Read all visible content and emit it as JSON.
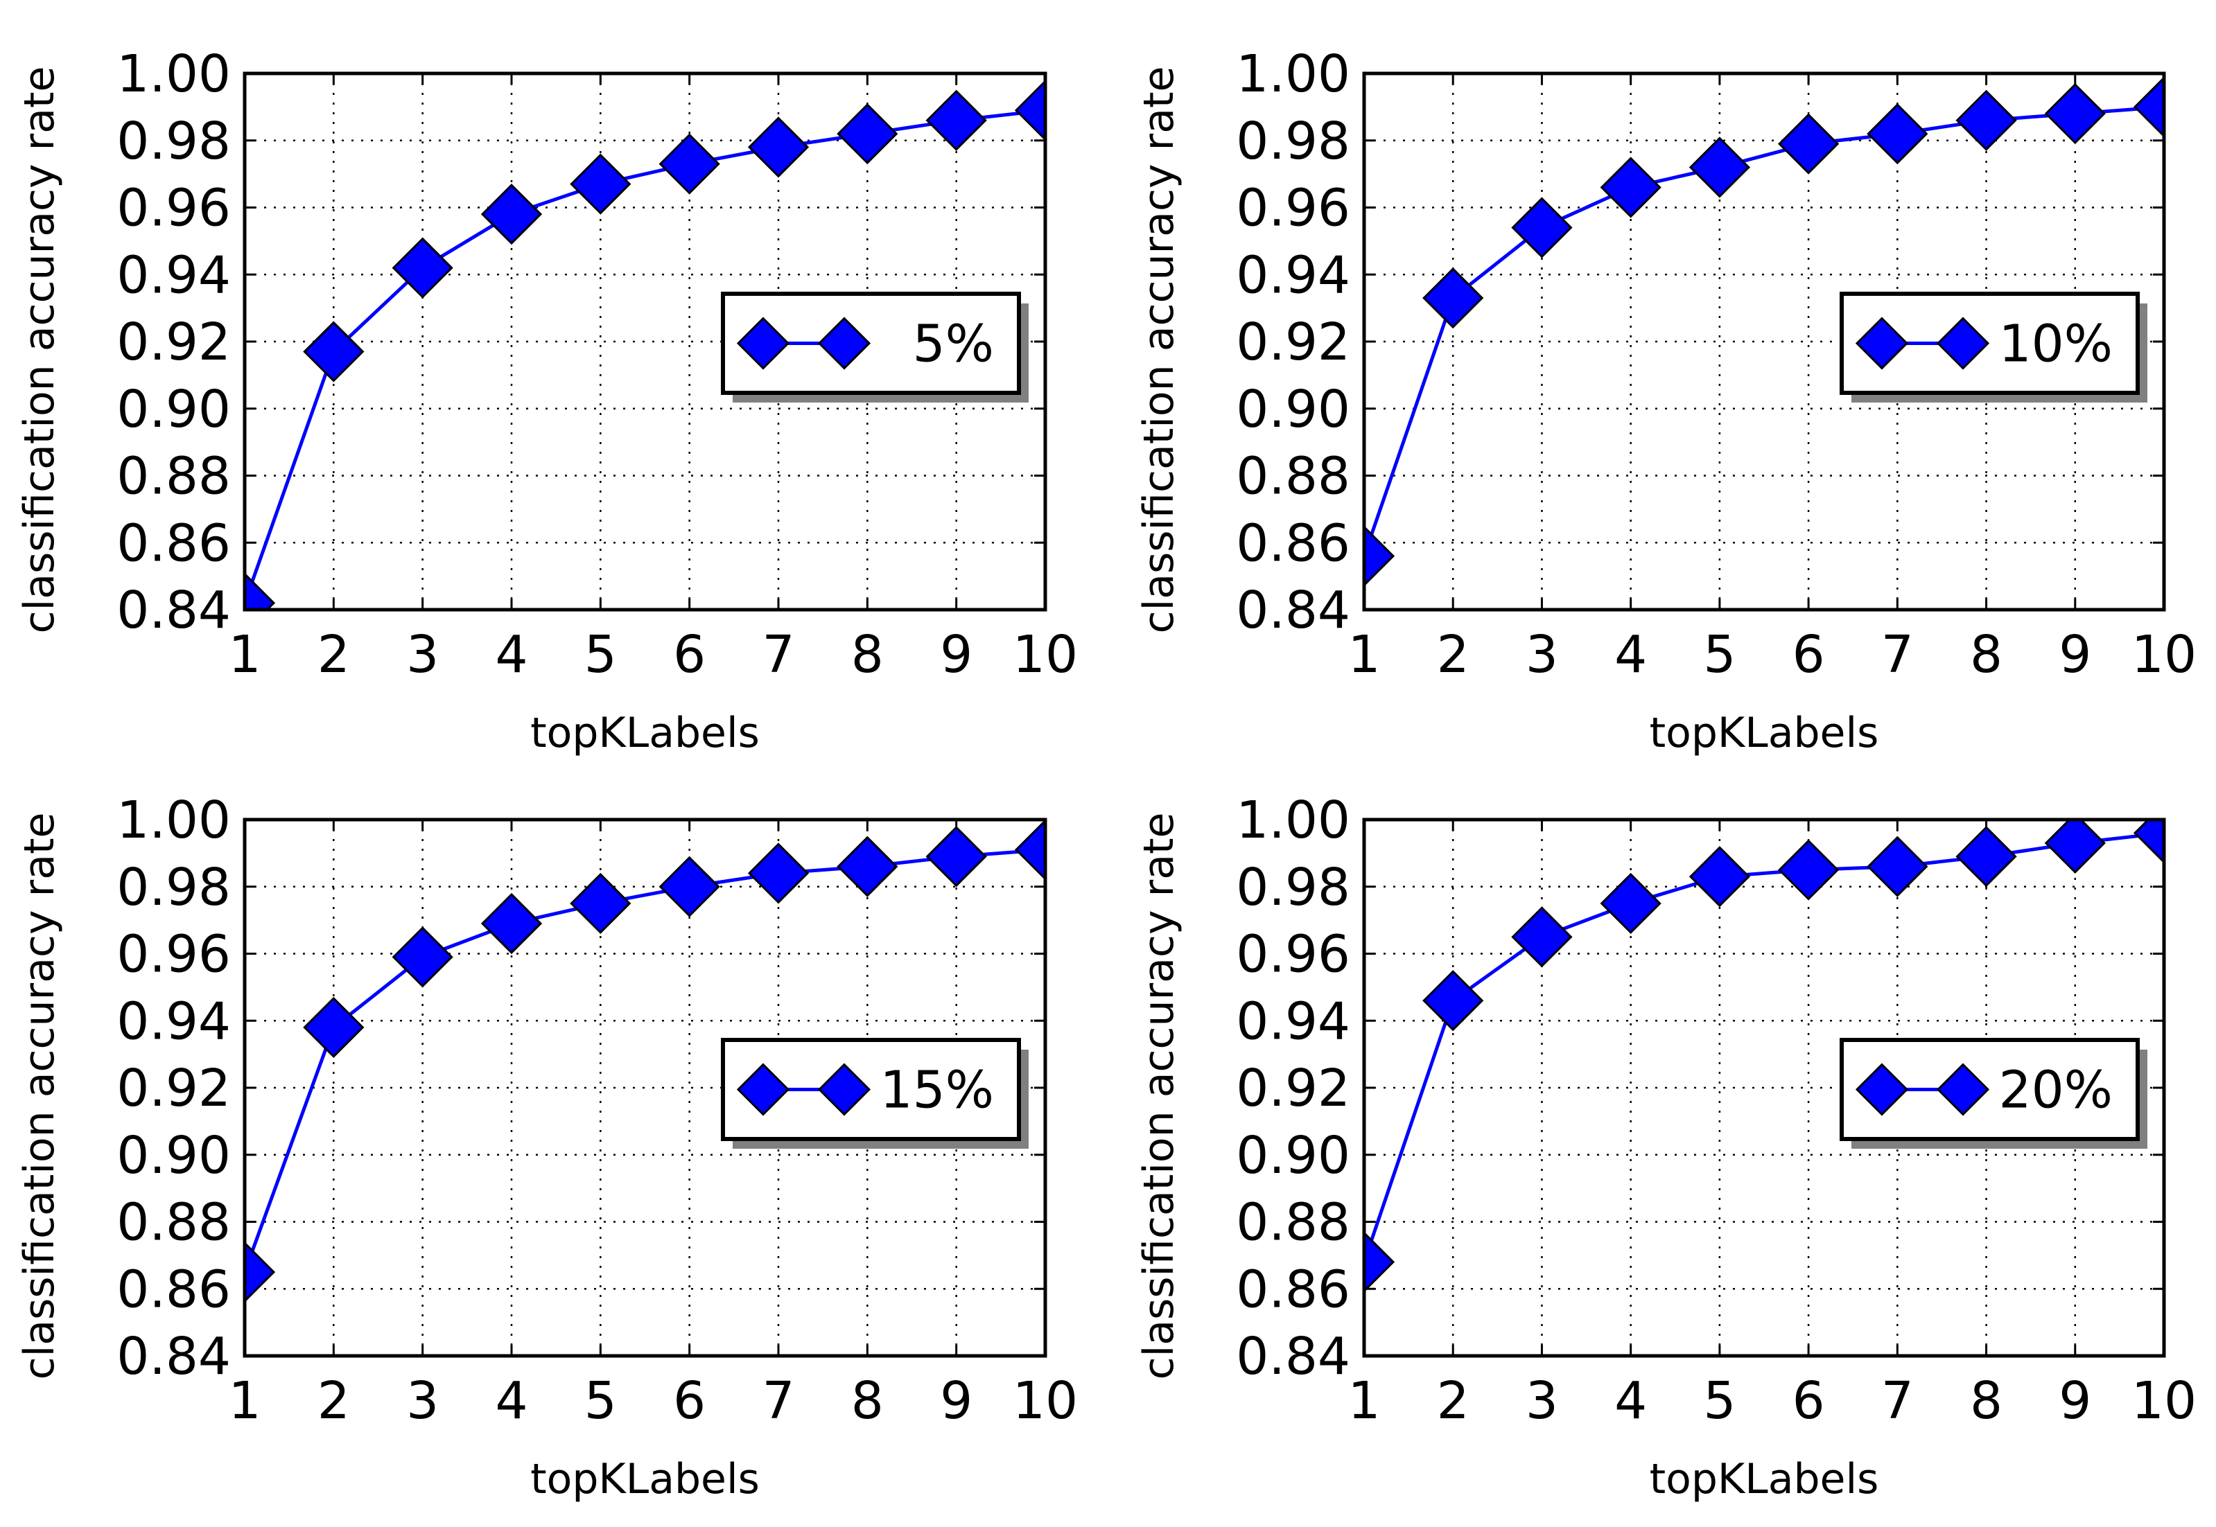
{
  "chart_data": [
    {
      "type": "line",
      "title": "",
      "xlabel": "topKLabels",
      "ylabel": "classification accuracy rate",
      "xlim": [
        1,
        10
      ],
      "ylim": [
        0.84,
        1.0
      ],
      "xticks": [
        "1",
        "2",
        "3",
        "4",
        "5",
        "6",
        "7",
        "8",
        "9",
        "10"
      ],
      "yticks": [
        "0.84",
        "0.86",
        "0.88",
        "0.90",
        "0.92",
        "0.94",
        "0.96",
        "0.98",
        "1.00"
      ],
      "grid": true,
      "legend_position": "center-right",
      "series": [
        {
          "name": "5%",
          "color": "#0000ff",
          "marker": "diamond",
          "x": [
            1,
            2,
            3,
            4,
            5,
            6,
            7,
            8,
            9,
            10
          ],
          "values": [
            0.842,
            0.917,
            0.942,
            0.958,
            0.967,
            0.973,
            0.978,
            0.982,
            0.986,
            0.989
          ]
        }
      ]
    },
    {
      "type": "line",
      "title": "",
      "xlabel": "topKLabels",
      "ylabel": "classification accuracy rate",
      "xlim": [
        1,
        10
      ],
      "ylim": [
        0.84,
        1.0
      ],
      "xticks": [
        "1",
        "2",
        "3",
        "4",
        "5",
        "6",
        "7",
        "8",
        "9",
        "10"
      ],
      "yticks": [
        "0.84",
        "0.86",
        "0.88",
        "0.90",
        "0.92",
        "0.94",
        "0.96",
        "0.98",
        "1.00"
      ],
      "grid": true,
      "legend_position": "center-right",
      "series": [
        {
          "name": "10%",
          "color": "#0000ff",
          "marker": "diamond",
          "x": [
            1,
            2,
            3,
            4,
            5,
            6,
            7,
            8,
            9,
            10
          ],
          "values": [
            0.856,
            0.933,
            0.954,
            0.966,
            0.972,
            0.979,
            0.982,
            0.986,
            0.988,
            0.99
          ]
        }
      ]
    },
    {
      "type": "line",
      "title": "",
      "xlabel": "topKLabels",
      "ylabel": "classification accuracy rate",
      "xlim": [
        1,
        10
      ],
      "ylim": [
        0.84,
        1.0
      ],
      "xticks": [
        "1",
        "2",
        "3",
        "4",
        "5",
        "6",
        "7",
        "8",
        "9",
        "10"
      ],
      "yticks": [
        "0.84",
        "0.86",
        "0.88",
        "0.90",
        "0.92",
        "0.94",
        "0.96",
        "0.98",
        "1.00"
      ],
      "grid": true,
      "legend_position": "center-right",
      "series": [
        {
          "name": "15%",
          "color": "#0000ff",
          "marker": "diamond",
          "x": [
            1,
            2,
            3,
            4,
            5,
            6,
            7,
            8,
            9,
            10
          ],
          "values": [
            0.865,
            0.938,
            0.959,
            0.969,
            0.975,
            0.98,
            0.984,
            0.986,
            0.989,
            0.991
          ]
        }
      ]
    },
    {
      "type": "line",
      "title": "",
      "xlabel": "topKLabels",
      "ylabel": "classification accuracy rate",
      "xlim": [
        1,
        10
      ],
      "ylim": [
        0.84,
        1.0
      ],
      "xticks": [
        "1",
        "2",
        "3",
        "4",
        "5",
        "6",
        "7",
        "8",
        "9",
        "10"
      ],
      "yticks": [
        "0.84",
        "0.86",
        "0.88",
        "0.90",
        "0.92",
        "0.94",
        "0.96",
        "0.98",
        "1.00"
      ],
      "grid": true,
      "legend_position": "center-right",
      "series": [
        {
          "name": "20%",
          "color": "#0000ff",
          "marker": "diamond",
          "x": [
            1,
            2,
            3,
            4,
            5,
            6,
            7,
            8,
            9,
            10
          ],
          "values": [
            0.868,
            0.946,
            0.965,
            0.975,
            0.983,
            0.985,
            0.986,
            0.989,
            0.993,
            0.996
          ]
        }
      ]
    }
  ]
}
